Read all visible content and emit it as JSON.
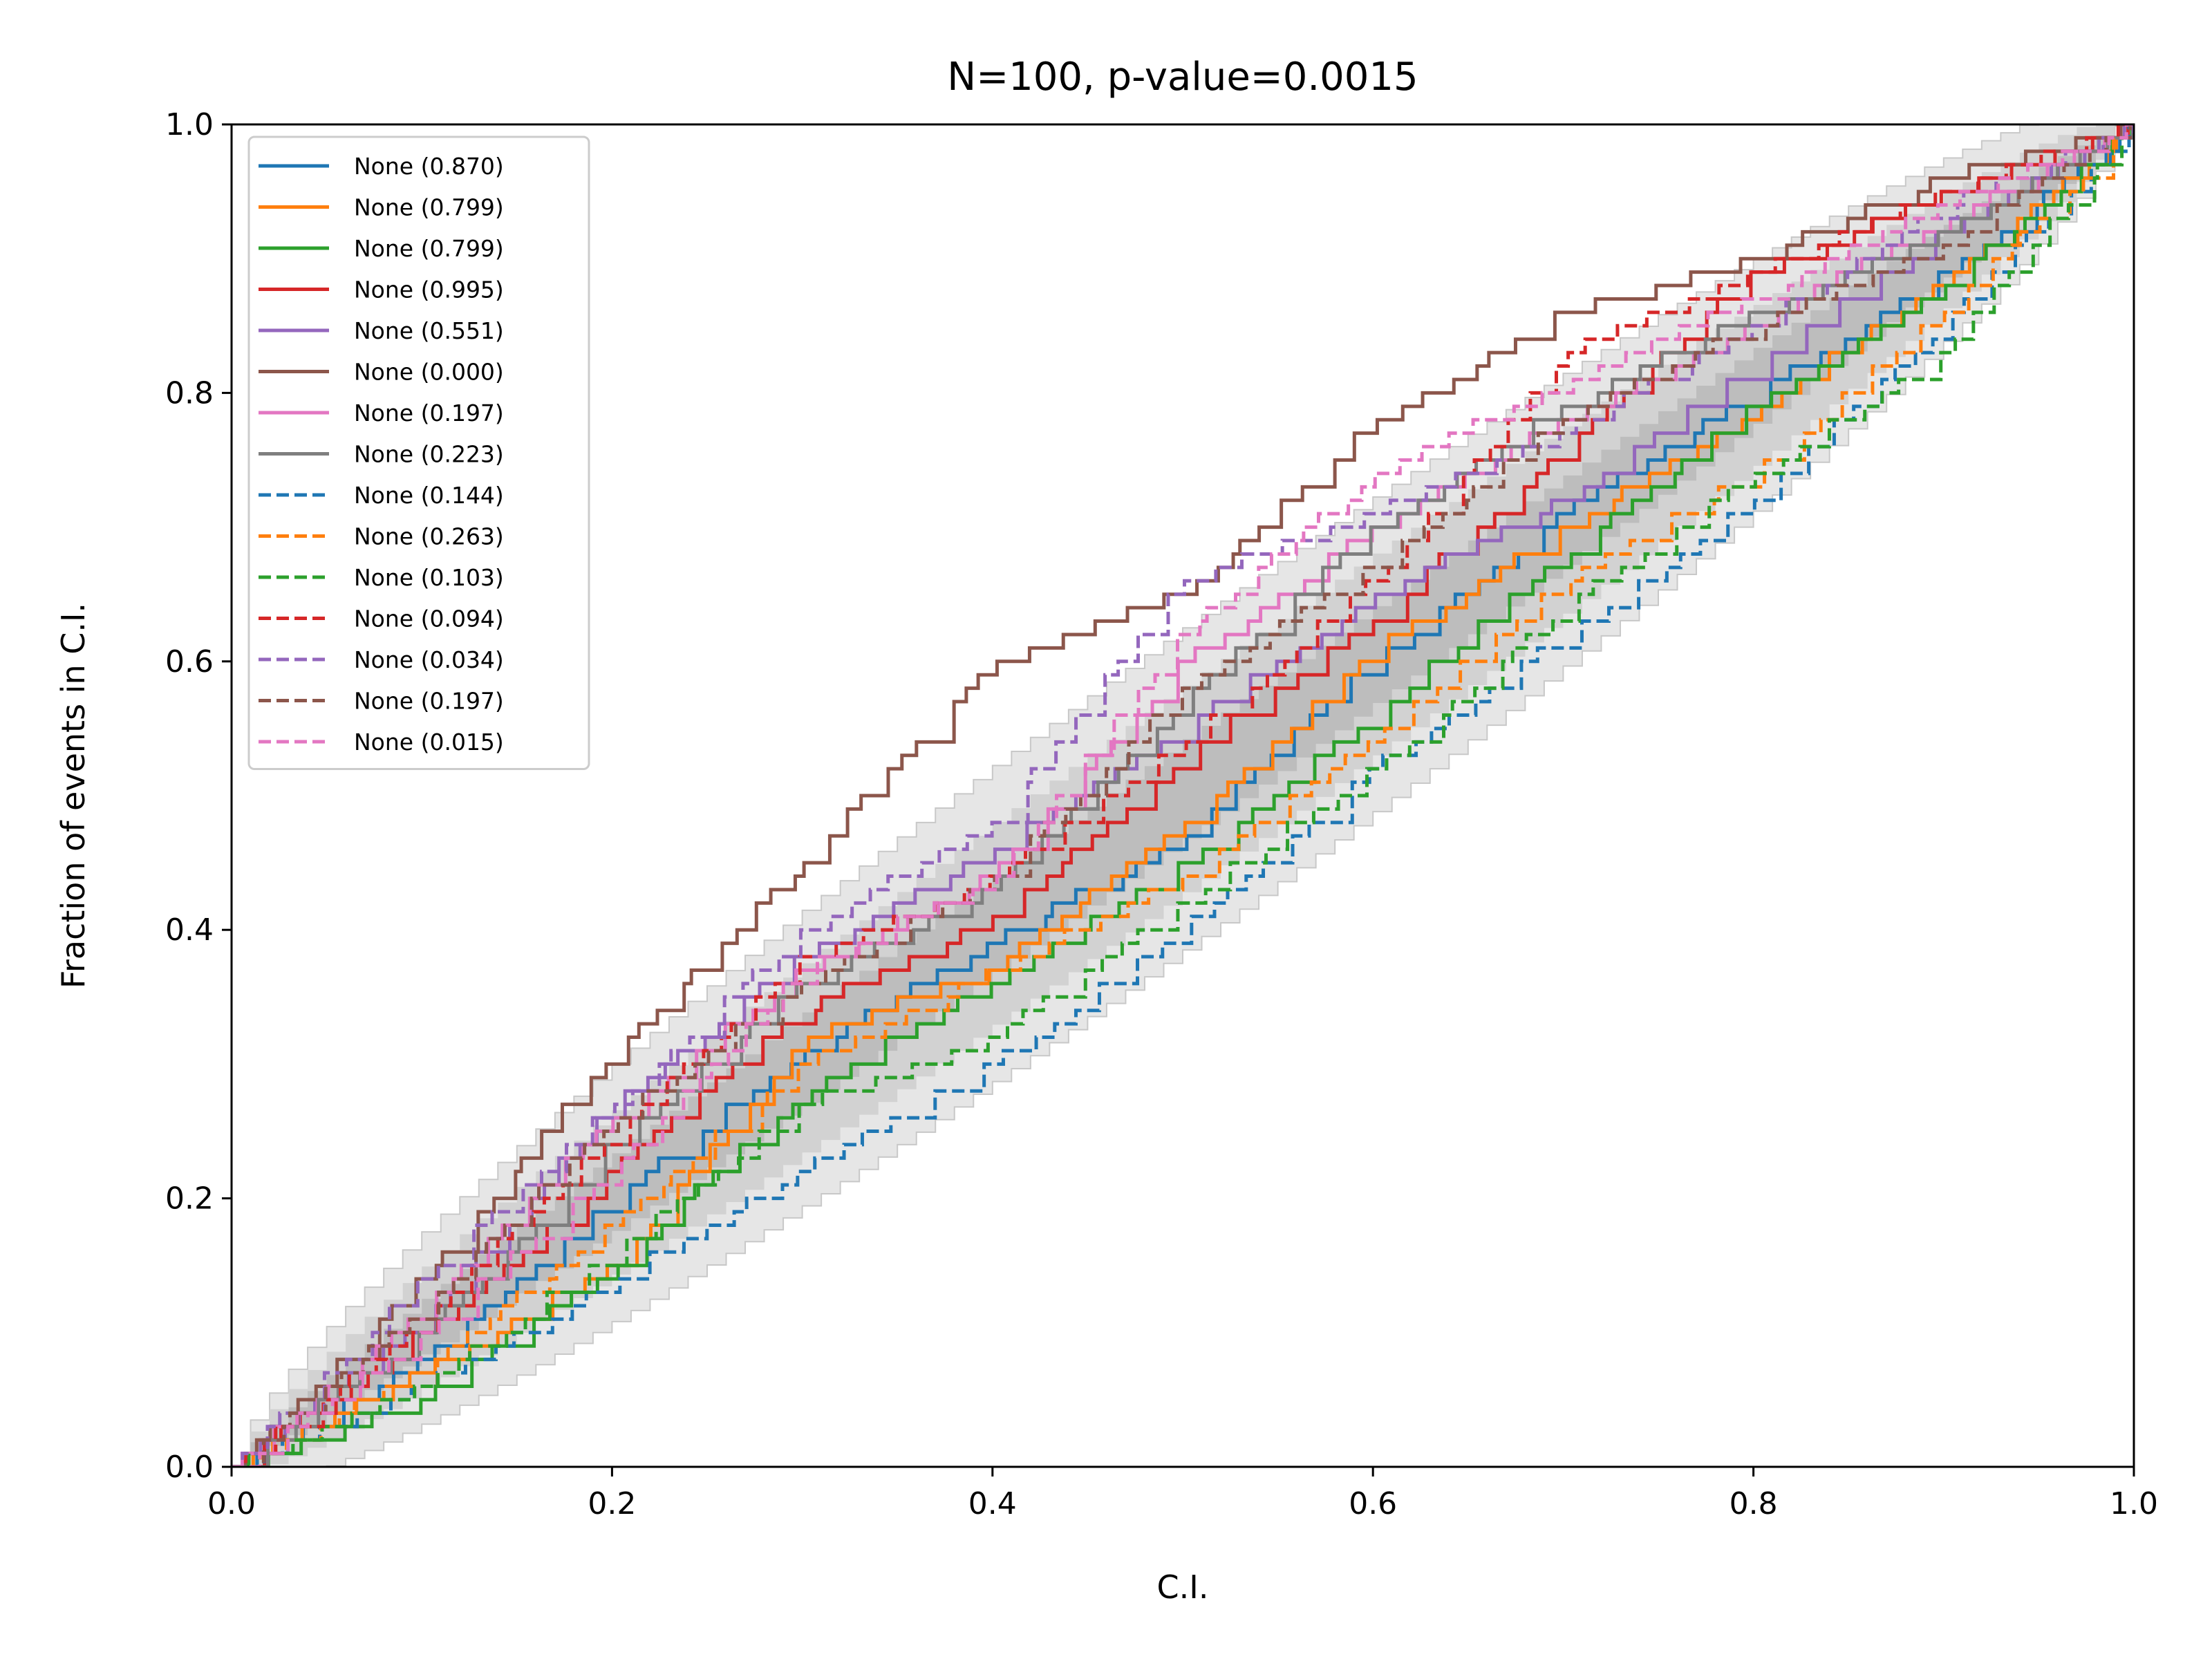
{
  "chart_data": {
    "type": "line",
    "title": "N=100, p-value=0.0015",
    "xlabel": "C.I.",
    "ylabel": "Fraction of events in C.I.",
    "xlim": [
      0,
      1
    ],
    "ylim": [
      0,
      1
    ],
    "xticks": [
      "0.0",
      "0.2",
      "0.4",
      "0.6",
      "0.8",
      "1.0"
    ],
    "yticks": [
      "0.0",
      "0.2",
      "0.4",
      "0.6",
      "0.8",
      "1.0"
    ],
    "grid": false,
    "legend_position": "top-left",
    "bands": [
      {
        "level": "outer",
        "color": "#e6e6e6",
        "half_width_max": 0.125
      },
      {
        "level": "middle",
        "color": "#d2d2d2",
        "half_width_max": 0.082
      },
      {
        "level": "inner",
        "color": "#bdbdbd",
        "half_width_max": 0.042
      }
    ],
    "series": [
      {
        "name": "None (0.870)",
        "color": "#1f77b4",
        "dash": "solid",
        "x": [
          0,
          0.1,
          0.2,
          0.3,
          0.4,
          0.5,
          0.6,
          0.7,
          0.8,
          0.9,
          1.0
        ],
        "y": [
          0,
          0.08,
          0.2,
          0.31,
          0.39,
          0.47,
          0.6,
          0.71,
          0.8,
          0.89,
          1.0
        ]
      },
      {
        "name": "None (0.799)",
        "color": "#ff7f0e",
        "dash": "solid",
        "x": [
          0,
          0.1,
          0.2,
          0.3,
          0.4,
          0.5,
          0.6,
          0.7,
          0.8,
          0.9,
          1.0
        ],
        "y": [
          0,
          0.07,
          0.15,
          0.32,
          0.37,
          0.48,
          0.61,
          0.7,
          0.79,
          0.88,
          1.0
        ]
      },
      {
        "name": "None (0.799)",
        "color": "#2ca02c",
        "dash": "solid",
        "x": [
          0,
          0.1,
          0.2,
          0.3,
          0.4,
          0.5,
          0.6,
          0.7,
          0.8,
          0.9,
          1.0
        ],
        "y": [
          0,
          0.05,
          0.15,
          0.28,
          0.36,
          0.45,
          0.56,
          0.68,
          0.79,
          0.88,
          1.0
        ]
      },
      {
        "name": "None (0.995)",
        "color": "#d62728",
        "dash": "solid",
        "x": [
          0,
          0.1,
          0.2,
          0.3,
          0.4,
          0.5,
          0.6,
          0.7,
          0.8,
          0.9,
          1.0
        ],
        "y": [
          0,
          0.1,
          0.22,
          0.34,
          0.41,
          0.53,
          0.63,
          0.76,
          0.89,
          0.95,
          1.0
        ]
      },
      {
        "name": "None (0.551)",
        "color": "#9467bd",
        "dash": "solid",
        "x": [
          0,
          0.1,
          0.2,
          0.3,
          0.4,
          0.5,
          0.6,
          0.7,
          0.8,
          0.9,
          1.0
        ],
        "y": [
          0,
          0.11,
          0.27,
          0.38,
          0.46,
          0.55,
          0.65,
          0.72,
          0.82,
          0.92,
          1.0
        ]
      },
      {
        "name": "None (0.000)",
        "color": "#8c564b",
        "dash": "solid",
        "x": [
          0,
          0.1,
          0.2,
          0.3,
          0.4,
          0.5,
          0.6,
          0.7,
          0.8,
          0.9,
          1.0
        ],
        "y": [
          0,
          0.14,
          0.31,
          0.45,
          0.6,
          0.65,
          0.78,
          0.86,
          0.9,
          0.96,
          1.0
        ]
      },
      {
        "name": "None (0.197)",
        "color": "#e377c2",
        "dash": "solid",
        "x": [
          0,
          0.1,
          0.2,
          0.3,
          0.4,
          0.5,
          0.6,
          0.7,
          0.8,
          0.9,
          1.0
        ],
        "y": [
          0,
          0.12,
          0.26,
          0.37,
          0.44,
          0.6,
          0.7,
          0.78,
          0.85,
          0.93,
          1.0
        ]
      },
      {
        "name": "None (0.223)",
        "color": "#7f7f7f",
        "dash": "solid",
        "x": [
          0,
          0.1,
          0.2,
          0.3,
          0.4,
          0.5,
          0.6,
          0.7,
          0.8,
          0.9,
          1.0
        ],
        "y": [
          0,
          0.1,
          0.24,
          0.36,
          0.43,
          0.57,
          0.7,
          0.79,
          0.86,
          0.92,
          1.0
        ]
      },
      {
        "name": "None (0.144)",
        "color": "#1f77b4",
        "dash": "dashed",
        "x": [
          0,
          0.1,
          0.2,
          0.3,
          0.4,
          0.5,
          0.6,
          0.7,
          0.8,
          0.9,
          1.0
        ],
        "y": [
          0,
          0.06,
          0.14,
          0.22,
          0.3,
          0.4,
          0.52,
          0.62,
          0.72,
          0.85,
          1.0
        ]
      },
      {
        "name": "None (0.263)",
        "color": "#ff7f0e",
        "dash": "dashed",
        "x": [
          0,
          0.1,
          0.2,
          0.3,
          0.4,
          0.5,
          0.6,
          0.7,
          0.8,
          0.9,
          1.0
        ],
        "y": [
          0,
          0.07,
          0.18,
          0.3,
          0.37,
          0.44,
          0.54,
          0.66,
          0.74,
          0.86,
          1.0
        ]
      },
      {
        "name": "None (0.103)",
        "color": "#2ca02c",
        "dash": "dashed",
        "x": [
          0,
          0.1,
          0.2,
          0.3,
          0.4,
          0.5,
          0.6,
          0.7,
          0.8,
          0.9,
          1.0
        ],
        "y": [
          0,
          0.06,
          0.16,
          0.27,
          0.32,
          0.42,
          0.52,
          0.64,
          0.74,
          0.83,
          1.0
        ]
      },
      {
        "name": "None (0.094)",
        "color": "#d62728",
        "dash": "dashed",
        "x": [
          0,
          0.1,
          0.2,
          0.3,
          0.4,
          0.5,
          0.6,
          0.7,
          0.8,
          0.9,
          1.0
        ],
        "y": [
          0,
          0.11,
          0.25,
          0.38,
          0.44,
          0.54,
          0.66,
          0.83,
          0.89,
          0.95,
          1.0
        ]
      },
      {
        "name": "None (0.034)",
        "color": "#9467bd",
        "dash": "dashed",
        "x": [
          0,
          0.1,
          0.2,
          0.3,
          0.4,
          0.5,
          0.6,
          0.7,
          0.8,
          0.9,
          1.0
        ],
        "y": [
          0,
          0.14,
          0.27,
          0.4,
          0.48,
          0.66,
          0.71,
          0.77,
          0.85,
          0.94,
          1.0
        ]
      },
      {
        "name": "None (0.197)",
        "color": "#8c564b",
        "dash": "dashed",
        "x": [
          0,
          0.1,
          0.2,
          0.3,
          0.4,
          0.5,
          0.6,
          0.7,
          0.8,
          0.9,
          1.0
        ],
        "y": [
          0,
          0.12,
          0.26,
          0.36,
          0.44,
          0.58,
          0.67,
          0.78,
          0.85,
          0.91,
          1.0
        ]
      },
      {
        "name": "None (0.015)",
        "color": "#e377c2",
        "dash": "dashed",
        "x": [
          0,
          0.1,
          0.2,
          0.3,
          0.4,
          0.5,
          0.6,
          0.7,
          0.8,
          0.9,
          1.0
        ],
        "y": [
          0,
          0.1,
          0.22,
          0.37,
          0.44,
          0.62,
          0.74,
          0.81,
          0.87,
          0.94,
          1.0
        ]
      }
    ]
  }
}
